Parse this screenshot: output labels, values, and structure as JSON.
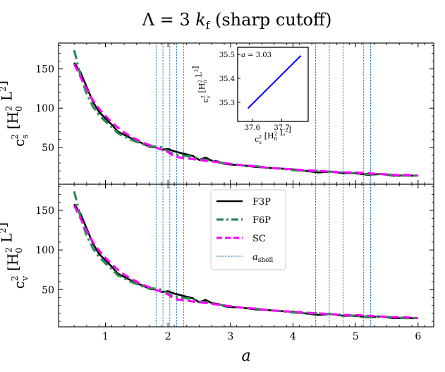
{
  "chart_data": {
    "type": "line",
    "title": "Λ = 3 k_f (sharp cutoff)",
    "xlabel": "a",
    "xlim": [
      0.25,
      6.25
    ],
    "xticks": [
      1,
      2,
      3,
      4,
      5,
      6
    ],
    "a_shell": [
      1.81,
      1.92,
      2.03,
      2.14,
      2.25,
      4.36,
      4.58,
      4.8,
      5.13,
      5.24
    ],
    "legend": [
      "F3P",
      "F6P",
      "SC",
      "a_shell"
    ],
    "colors": {
      "F3P": "#000000",
      "F6P": "#2e8b57",
      "SC": "#ff00ff",
      "a_shell": "#1f77b4",
      "inset": "#0000ff"
    },
    "panels": [
      {
        "ylabel": "c_s^2 [H_0^2 L^2]",
        "ylim": [
          3,
          183
        ],
        "yticks": [
          50,
          100,
          150
        ],
        "series": [
          {
            "name": "F3P",
            "x": [
              0.5,
              0.6,
              0.7,
              0.8,
              0.9,
              1.0,
              1.1,
              1.2,
              1.3,
              1.4,
              1.5,
              1.6,
              1.7,
              1.8,
              1.9,
              2.0,
              2.1,
              2.2,
              2.3,
              2.4,
              2.5,
              2.6,
              2.7,
              2.8,
              2.9,
              3.0,
              3.2,
              3.4,
              3.6,
              3.8,
              4.0,
              4.2,
              4.4,
              4.6,
              4.8,
              5.0,
              5.2,
              5.4,
              5.6,
              5.8,
              6.0
            ],
            "y": [
              158,
              146,
              127,
              108,
              95,
              87,
              79,
              70,
              66,
              62,
              58,
              55,
              51,
              50,
              47,
              48,
              45,
              43,
              41,
              39,
              34,
              37,
              33,
              32,
              29,
              28,
              27,
              25,
              24,
              23,
              22,
              20,
              18,
              19,
              17,
              17,
              15,
              16,
              14,
              14,
              14
            ]
          },
          {
            "name": "F6P",
            "x": [
              0.5,
              0.6,
              0.7,
              0.8,
              0.9,
              1.0,
              1.1,
              1.2,
              1.3,
              1.4,
              1.5,
              1.6,
              1.7,
              1.8,
              1.9,
              2.0,
              2.1,
              2.2,
              2.3,
              2.4,
              2.5,
              2.6,
              2.7,
              2.8,
              2.9,
              3.0,
              3.2,
              3.4,
              3.6,
              3.8,
              4.0,
              4.2,
              4.4,
              4.6,
              4.8,
              5.0,
              5.2,
              5.4,
              5.6,
              5.8,
              6.0
            ],
            "y": [
              174,
              142,
              118,
              102,
              91,
              83,
              76,
              68,
              64,
              60,
              57,
              54,
              52,
              51,
              50,
              45,
              41,
              40,
              39,
              38,
              35,
              34,
              33,
              31,
              30,
              29,
              27,
              26,
              24,
              23,
              21,
              20,
              20,
              19,
              18,
              17,
              16,
              16,
              15,
              14,
              14
            ]
          },
          {
            "name": "SC",
            "x": [
              0.5,
              0.6,
              0.7,
              0.8,
              0.9,
              1.0,
              1.1,
              1.2,
              1.3,
              1.4,
              1.5,
              1.6,
              1.7,
              1.8,
              1.9,
              2.0,
              2.1,
              2.2,
              2.3,
              2.4,
              2.5,
              2.6,
              2.7,
              2.8,
              2.9,
              3.0,
              3.2,
              3.4,
              3.6,
              3.8,
              4.0,
              4.2,
              4.4,
              4.6,
              4.8,
              5.0,
              5.2,
              5.4,
              5.6,
              5.8,
              6.0
            ],
            "y": [
              156,
              140,
              124,
              110,
              99,
              90,
              82,
              75,
              69,
              64,
              60,
              56,
              53,
              50,
              47,
              44,
              38,
              37,
              36,
              35,
              34,
              33,
              32,
              31,
              30,
              29,
              27,
              26,
              24,
              23,
              22,
              21,
              20,
              19,
              18,
              18,
              17,
              16,
              15,
              15,
              14
            ]
          }
        ]
      },
      {
        "ylabel": "c_v^2 [H_0^2 L^2]",
        "ylim": [
          3,
          183
        ],
        "yticks": [
          50,
          100,
          150
        ],
        "series": [
          {
            "name": "F3P",
            "x": [
              0.5,
              0.6,
              0.7,
              0.8,
              0.9,
              1.0,
              1.1,
              1.2,
              1.3,
              1.4,
              1.5,
              1.6,
              1.7,
              1.8,
              1.9,
              2.0,
              2.1,
              2.2,
              2.3,
              2.4,
              2.5,
              2.6,
              2.7,
              2.8,
              2.9,
              3.0,
              3.2,
              3.4,
              3.6,
              3.8,
              4.0,
              4.2,
              4.4,
              4.6,
              4.8,
              5.0,
              5.2,
              5.4,
              5.6,
              5.8,
              6.0
            ],
            "y": [
              158,
              146,
              127,
              108,
              95,
              87,
              79,
              70,
              66,
              62,
              58,
              55,
              51,
              50,
              47,
              48,
              45,
              43,
              41,
              39,
              34,
              37,
              33,
              32,
              29,
              28,
              27,
              25,
              24,
              23,
              22,
              20,
              18,
              19,
              17,
              17,
              15,
              16,
              14,
              14,
              14
            ]
          },
          {
            "name": "F6P",
            "x": [
              0.5,
              0.6,
              0.7,
              0.8,
              0.9,
              1.0,
              1.1,
              1.2,
              1.3,
              1.4,
              1.5,
              1.6,
              1.7,
              1.8,
              1.9,
              2.0,
              2.1,
              2.2,
              2.3,
              2.4,
              2.5,
              2.6,
              2.7,
              2.8,
              2.9,
              3.0,
              3.2,
              3.4,
              3.6,
              3.8,
              4.0,
              4.2,
              4.4,
              4.6,
              4.8,
              5.0,
              5.2,
              5.4,
              5.6,
              5.8,
              6.0
            ],
            "y": [
              174,
              142,
              118,
              102,
              91,
              83,
              76,
              68,
              64,
              60,
              57,
              54,
              52,
              51,
              50,
              45,
              41,
              40,
              39,
              38,
              35,
              34,
              33,
              31,
              30,
              29,
              27,
              26,
              24,
              23,
              21,
              20,
              20,
              19,
              18,
              17,
              16,
              16,
              15,
              14,
              14
            ]
          },
          {
            "name": "SC",
            "x": [
              0.5,
              0.6,
              0.7,
              0.8,
              0.9,
              1.0,
              1.1,
              1.2,
              1.3,
              1.4,
              1.5,
              1.6,
              1.7,
              1.8,
              1.9,
              2.0,
              2.1,
              2.2,
              2.3,
              2.4,
              2.5,
              2.6,
              2.7,
              2.8,
              2.9,
              3.0,
              3.2,
              3.4,
              3.6,
              3.8,
              4.0,
              4.2,
              4.4,
              4.6,
              4.8,
              5.0,
              5.2,
              5.4,
              5.6,
              5.8,
              6.0
            ],
            "y": [
              156,
              140,
              124,
              110,
              99,
              90,
              82,
              75,
              69,
              64,
              60,
              56,
              53,
              50,
              47,
              44,
              38,
              37,
              36,
              35,
              34,
              33,
              32,
              31,
              30,
              29,
              27,
              26,
              24,
              23,
              22,
              21,
              20,
              19,
              18,
              18,
              17,
              16,
              15,
              15,
              14
            ]
          }
        ]
      }
    ],
    "inset": {
      "annotation": "a = 3.03",
      "xlabel": "c_s^2 [H_0^2 L^2]",
      "ylabel": "c_v^2 [H_0^2 L^2]",
      "xlim": [
        37.55,
        37.79
      ],
      "ylim": [
        35.22,
        35.53
      ],
      "xticks": [
        "37.6",
        "37.7"
      ],
      "yticks": [
        "35.3",
        "35.4",
        "35.5"
      ],
      "x": [
        37.585,
        37.765
      ],
      "y": [
        35.275,
        35.495
      ]
    }
  }
}
